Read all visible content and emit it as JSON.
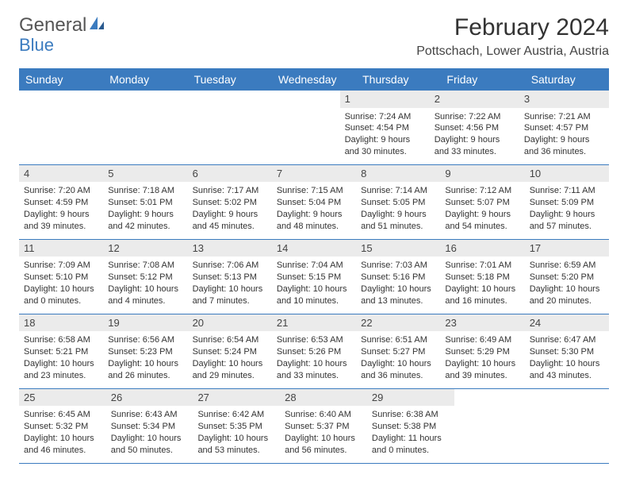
{
  "logo": {
    "text1": "General",
    "text2": "Blue"
  },
  "title": "February 2024",
  "location": "Pottschach, Lower Austria, Austria",
  "dayNames": [
    "Sunday",
    "Monday",
    "Tuesday",
    "Wednesday",
    "Thursday",
    "Friday",
    "Saturday"
  ],
  "colors": {
    "header_bg": "#3b7bbf",
    "header_text": "#ffffff",
    "daynum_bg": "#ebebeb",
    "border": "#3b7bbf",
    "logo_gray": "#555555",
    "logo_blue": "#3b7bbf"
  },
  "weeks": [
    [
      null,
      null,
      null,
      null,
      {
        "n": "1",
        "sr": "Sunrise: 7:24 AM",
        "ss": "Sunset: 4:54 PM",
        "d1": "Daylight: 9 hours",
        "d2": "and 30 minutes."
      },
      {
        "n": "2",
        "sr": "Sunrise: 7:22 AM",
        "ss": "Sunset: 4:56 PM",
        "d1": "Daylight: 9 hours",
        "d2": "and 33 minutes."
      },
      {
        "n": "3",
        "sr": "Sunrise: 7:21 AM",
        "ss": "Sunset: 4:57 PM",
        "d1": "Daylight: 9 hours",
        "d2": "and 36 minutes."
      }
    ],
    [
      {
        "n": "4",
        "sr": "Sunrise: 7:20 AM",
        "ss": "Sunset: 4:59 PM",
        "d1": "Daylight: 9 hours",
        "d2": "and 39 minutes."
      },
      {
        "n": "5",
        "sr": "Sunrise: 7:18 AM",
        "ss": "Sunset: 5:01 PM",
        "d1": "Daylight: 9 hours",
        "d2": "and 42 minutes."
      },
      {
        "n": "6",
        "sr": "Sunrise: 7:17 AM",
        "ss": "Sunset: 5:02 PM",
        "d1": "Daylight: 9 hours",
        "d2": "and 45 minutes."
      },
      {
        "n": "7",
        "sr": "Sunrise: 7:15 AM",
        "ss": "Sunset: 5:04 PM",
        "d1": "Daylight: 9 hours",
        "d2": "and 48 minutes."
      },
      {
        "n": "8",
        "sr": "Sunrise: 7:14 AM",
        "ss": "Sunset: 5:05 PM",
        "d1": "Daylight: 9 hours",
        "d2": "and 51 minutes."
      },
      {
        "n": "9",
        "sr": "Sunrise: 7:12 AM",
        "ss": "Sunset: 5:07 PM",
        "d1": "Daylight: 9 hours",
        "d2": "and 54 minutes."
      },
      {
        "n": "10",
        "sr": "Sunrise: 7:11 AM",
        "ss": "Sunset: 5:09 PM",
        "d1": "Daylight: 9 hours",
        "d2": "and 57 minutes."
      }
    ],
    [
      {
        "n": "11",
        "sr": "Sunrise: 7:09 AM",
        "ss": "Sunset: 5:10 PM",
        "d1": "Daylight: 10 hours",
        "d2": "and 0 minutes."
      },
      {
        "n": "12",
        "sr": "Sunrise: 7:08 AM",
        "ss": "Sunset: 5:12 PM",
        "d1": "Daylight: 10 hours",
        "d2": "and 4 minutes."
      },
      {
        "n": "13",
        "sr": "Sunrise: 7:06 AM",
        "ss": "Sunset: 5:13 PM",
        "d1": "Daylight: 10 hours",
        "d2": "and 7 minutes."
      },
      {
        "n": "14",
        "sr": "Sunrise: 7:04 AM",
        "ss": "Sunset: 5:15 PM",
        "d1": "Daylight: 10 hours",
        "d2": "and 10 minutes."
      },
      {
        "n": "15",
        "sr": "Sunrise: 7:03 AM",
        "ss": "Sunset: 5:16 PM",
        "d1": "Daylight: 10 hours",
        "d2": "and 13 minutes."
      },
      {
        "n": "16",
        "sr": "Sunrise: 7:01 AM",
        "ss": "Sunset: 5:18 PM",
        "d1": "Daylight: 10 hours",
        "d2": "and 16 minutes."
      },
      {
        "n": "17",
        "sr": "Sunrise: 6:59 AM",
        "ss": "Sunset: 5:20 PM",
        "d1": "Daylight: 10 hours",
        "d2": "and 20 minutes."
      }
    ],
    [
      {
        "n": "18",
        "sr": "Sunrise: 6:58 AM",
        "ss": "Sunset: 5:21 PM",
        "d1": "Daylight: 10 hours",
        "d2": "and 23 minutes."
      },
      {
        "n": "19",
        "sr": "Sunrise: 6:56 AM",
        "ss": "Sunset: 5:23 PM",
        "d1": "Daylight: 10 hours",
        "d2": "and 26 minutes."
      },
      {
        "n": "20",
        "sr": "Sunrise: 6:54 AM",
        "ss": "Sunset: 5:24 PM",
        "d1": "Daylight: 10 hours",
        "d2": "and 29 minutes."
      },
      {
        "n": "21",
        "sr": "Sunrise: 6:53 AM",
        "ss": "Sunset: 5:26 PM",
        "d1": "Daylight: 10 hours",
        "d2": "and 33 minutes."
      },
      {
        "n": "22",
        "sr": "Sunrise: 6:51 AM",
        "ss": "Sunset: 5:27 PM",
        "d1": "Daylight: 10 hours",
        "d2": "and 36 minutes."
      },
      {
        "n": "23",
        "sr": "Sunrise: 6:49 AM",
        "ss": "Sunset: 5:29 PM",
        "d1": "Daylight: 10 hours",
        "d2": "and 39 minutes."
      },
      {
        "n": "24",
        "sr": "Sunrise: 6:47 AM",
        "ss": "Sunset: 5:30 PM",
        "d1": "Daylight: 10 hours",
        "d2": "and 43 minutes."
      }
    ],
    [
      {
        "n": "25",
        "sr": "Sunrise: 6:45 AM",
        "ss": "Sunset: 5:32 PM",
        "d1": "Daylight: 10 hours",
        "d2": "and 46 minutes."
      },
      {
        "n": "26",
        "sr": "Sunrise: 6:43 AM",
        "ss": "Sunset: 5:34 PM",
        "d1": "Daylight: 10 hours",
        "d2": "and 50 minutes."
      },
      {
        "n": "27",
        "sr": "Sunrise: 6:42 AM",
        "ss": "Sunset: 5:35 PM",
        "d1": "Daylight: 10 hours",
        "d2": "and 53 minutes."
      },
      {
        "n": "28",
        "sr": "Sunrise: 6:40 AM",
        "ss": "Sunset: 5:37 PM",
        "d1": "Daylight: 10 hours",
        "d2": "and 56 minutes."
      },
      {
        "n": "29",
        "sr": "Sunrise: 6:38 AM",
        "ss": "Sunset: 5:38 PM",
        "d1": "Daylight: 11 hours",
        "d2": "and 0 minutes."
      },
      null,
      null
    ]
  ]
}
